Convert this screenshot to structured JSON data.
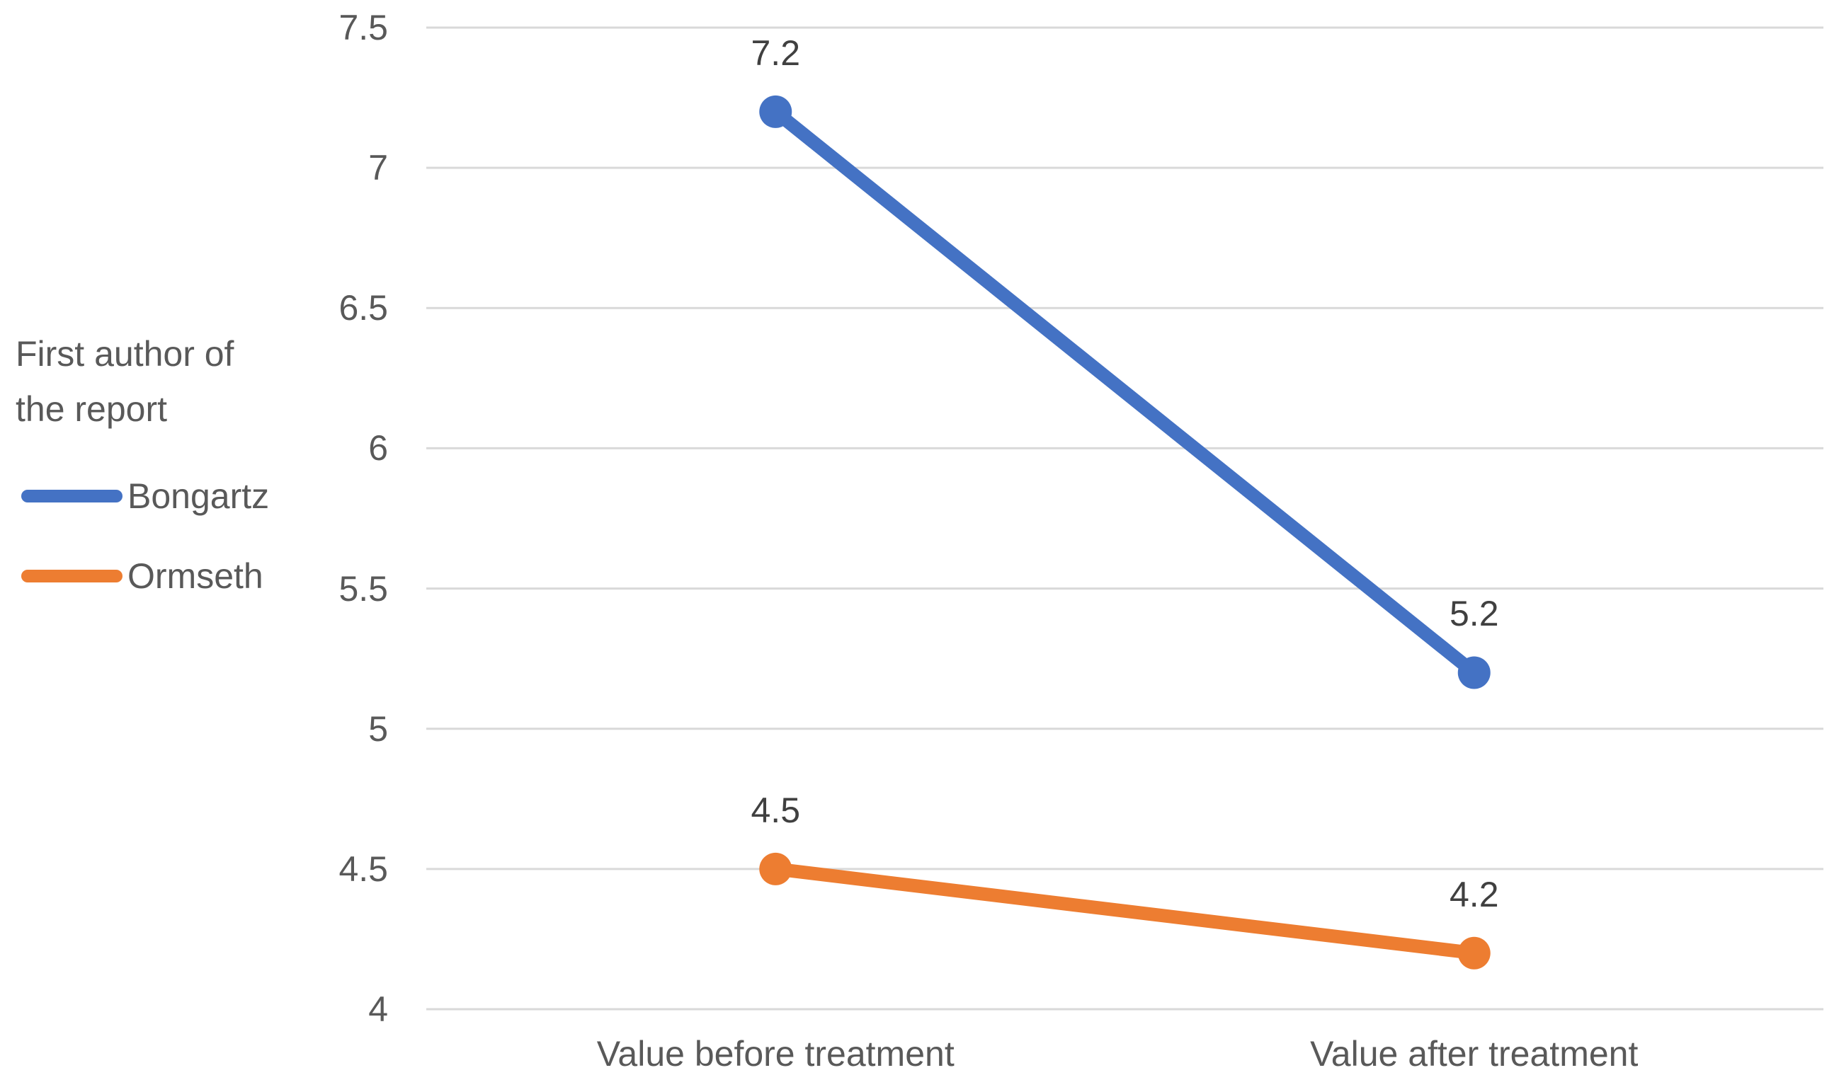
{
  "chart_data": {
    "type": "line",
    "categories": [
      "Value before treatment",
      "Value after treatment"
    ],
    "series": [
      {
        "name": "Bongartz",
        "color": "#4472C4",
        "values": [
          7.2,
          5.2
        ]
      },
      {
        "name": "Ormseth",
        "color": "#ED7D31",
        "values": [
          4.5,
          4.2
        ]
      }
    ],
    "y_ticks": [
      7.5,
      7,
      6.5,
      6,
      5.5,
      5,
      4.5,
      4
    ],
    "ylim": [
      4,
      7.5
    ],
    "grid": true,
    "data_labels_shown": true,
    "legend_position": "left",
    "legend_title": "First author of the report",
    "title": "",
    "xlabel": "",
    "ylabel": ""
  },
  "legend": {
    "title_lines": [
      "First author of",
      "the report"
    ],
    "items": [
      {
        "label": "Bongartz",
        "color": "#4472C4"
      },
      {
        "label": "Ormseth",
        "color": "#ED7D31"
      }
    ]
  },
  "colors": {
    "background": "#FFFFFF",
    "gridline": "#D9D9D9",
    "tick_label": "#595959",
    "category_label": "#595959",
    "data_label": "#404040",
    "legend_text": "#595959"
  }
}
